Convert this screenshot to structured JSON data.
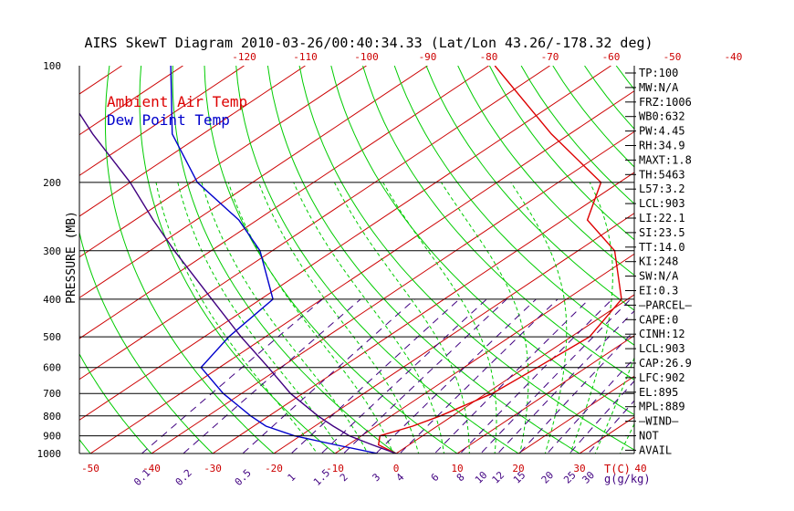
{
  "chart_data": {
    "type": "line",
    "title": "AIRS SkewT Diagram 2010-03-26/00:40:34.33 (Lat/Lon 43.26/-178.32 deg)",
    "ylabel": "PRESSURE (MB)",
    "xlabel": "T(C)",
    "mixing_ratio_unit": "g(g/kg)",
    "x_range_bottom": [
      -50,
      40
    ],
    "x_range_top": [
      -120,
      -40
    ],
    "pressure_range": [
      100,
      1000
    ],
    "bottom_ticks": [
      -50,
      -40,
      -30,
      -20,
      -10,
      0,
      10,
      20,
      30,
      40
    ],
    "top_ticks": [
      -120,
      -110,
      -100,
      -90,
      -80,
      -70,
      -60,
      -50,
      -40
    ],
    "pressure_ticks": [
      100,
      200,
      300,
      400,
      500,
      600,
      700,
      800,
      900,
      1000
    ],
    "pressure_lines": [
      200,
      300,
      400,
      500,
      600,
      700,
      800,
      900,
      1000
    ],
    "isotherms_c": [
      -140,
      -130,
      -120,
      -110,
      -100,
      -90,
      -80,
      -70,
      -60,
      -50,
      -40,
      -30,
      -20,
      -10,
      0,
      10,
      20,
      30,
      40
    ],
    "mixing_ratios": [
      "0.1",
      "0.2",
      "0.5",
      "1",
      "1.5",
      "2",
      "3",
      "4",
      "6",
      "8",
      "10",
      "12",
      "15",
      "20",
      "25",
      "30"
    ],
    "legend": [
      {
        "label": "Ambient Air Temp",
        "color": "#dd0000"
      },
      {
        "label": "Dew Point Temp",
        "color": "#0000cc"
      }
    ],
    "series": [
      {
        "name": "Ambient Air Temp",
        "color": "#dd0000",
        "points": [
          [
            1000,
            0
          ],
          [
            950,
            -5
          ],
          [
            900,
            -7
          ],
          [
            850,
            -4
          ],
          [
            800,
            -2
          ],
          [
            700,
            1
          ],
          [
            600,
            2
          ],
          [
            500,
            3
          ],
          [
            400,
            -1
          ],
          [
            300,
            -14
          ],
          [
            250,
            -26
          ],
          [
            200,
            -33
          ],
          [
            150,
            -53
          ],
          [
            100,
            -79
          ]
        ]
      },
      {
        "name": "Dew Point Temp",
        "color": "#0000cc",
        "points": [
          [
            1000,
            -3
          ],
          [
            950,
            -12
          ],
          [
            900,
            -21
          ],
          [
            850,
            -28
          ],
          [
            800,
            -33
          ],
          [
            700,
            -43
          ],
          [
            600,
            -53
          ],
          [
            500,
            -56
          ],
          [
            400,
            -58
          ],
          [
            300,
            -72
          ],
          [
            250,
            -83
          ],
          [
            200,
            -99
          ],
          [
            150,
            -115
          ],
          [
            100,
            -132
          ]
        ]
      },
      {
        "name": "Parcel",
        "color": "#400080",
        "points": [
          [
            1000,
            0
          ],
          [
            950,
            -6
          ],
          [
            900,
            -12
          ],
          [
            850,
            -17
          ],
          [
            800,
            -22
          ],
          [
            700,
            -32
          ],
          [
            600,
            -42
          ],
          [
            500,
            -54
          ],
          [
            400,
            -68
          ],
          [
            300,
            -86
          ],
          [
            250,
            -97
          ],
          [
            200,
            -110
          ],
          [
            150,
            -128
          ],
          [
            100,
            -152
          ]
        ]
      }
    ],
    "indices": [
      "TP:100",
      "MW:N/A",
      "FRZ:1006",
      "WB0:632",
      "PW:4.45",
      "RH:34.9",
      "MAXT:1.8",
      "TH:5463",
      "L57:3.2",
      "LCL:903",
      "LI:22.1",
      "SI:23.5",
      "TT:14.0",
      "KI:248",
      "SW:N/A",
      "EI:0.3",
      "—PARCEL—",
      "CAPE:0",
      "CINH:12",
      "LCL:903",
      "CAP:26.9",
      "LFC:902",
      "EL:895",
      "MPL:889",
      "—WIND—",
      "NOT",
      "AVAIL"
    ]
  }
}
